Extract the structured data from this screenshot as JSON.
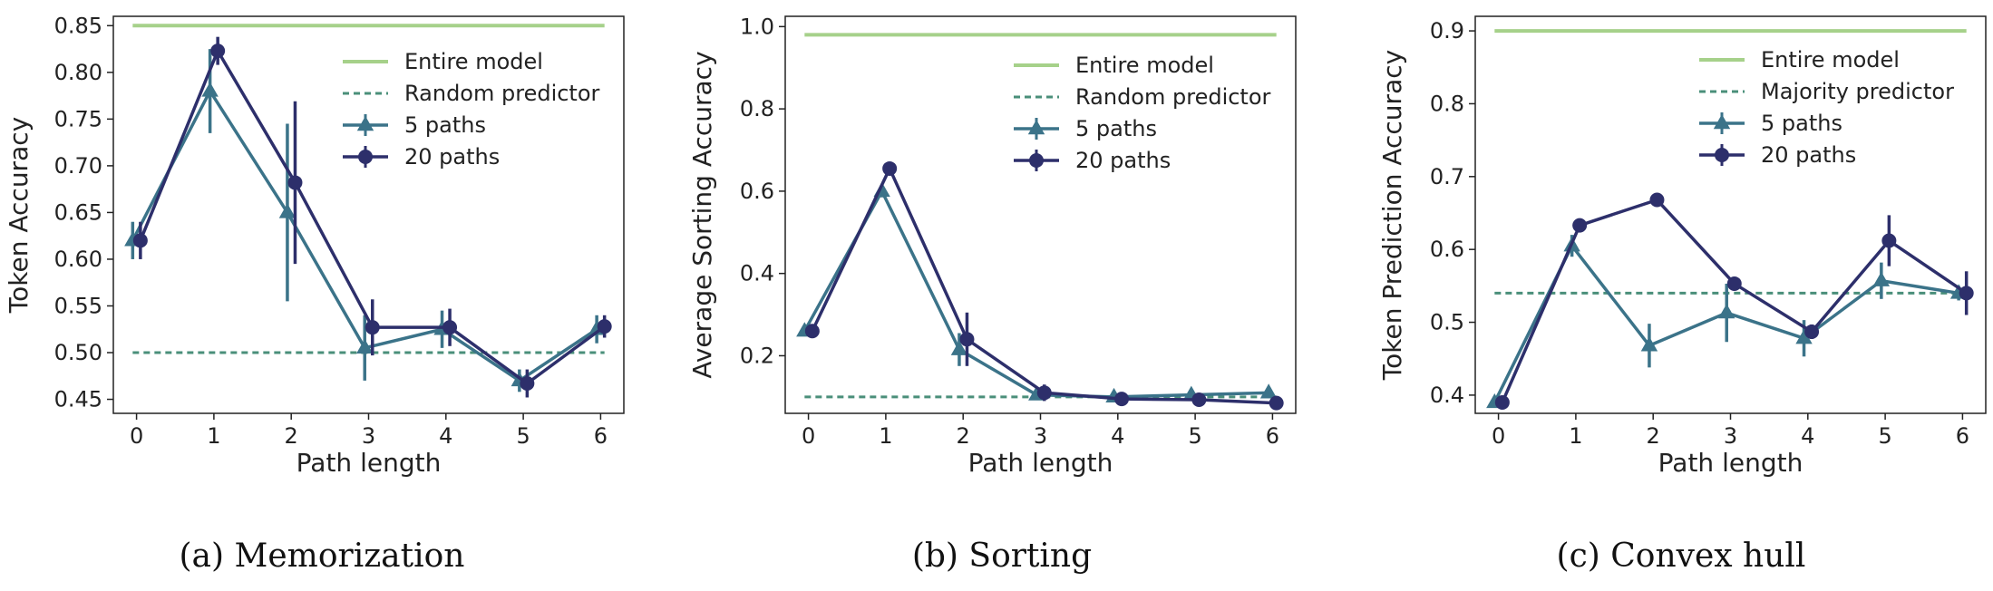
{
  "styles": {
    "entire_model": "#a6d18a",
    "baseline": "#4a8f7a",
    "five_paths": "#3b7389",
    "twenty_paths": "#2d2f6b"
  },
  "chart_data": [
    {
      "type": "line",
      "caption": "(a) Memorization",
      "xlabel": "Path length",
      "ylabel": "Token Accuracy",
      "x": [
        0,
        1,
        2,
        3,
        4,
        5,
        6
      ],
      "xlim": [
        -0.3,
        6.3
      ],
      "ylim": [
        0.435,
        0.86
      ],
      "yticks": [
        0.45,
        0.5,
        0.55,
        0.6,
        0.65,
        0.7,
        0.75,
        0.8,
        0.85
      ],
      "ytick_labels": [
        "0.45",
        "0.50",
        "0.55",
        "0.60",
        "0.65",
        "0.70",
        "0.75",
        "0.80",
        "0.85"
      ],
      "legend_position": "upper-right",
      "grid": false,
      "series": [
        {
          "name": "Entire model",
          "kind": "constant",
          "value": 0.85,
          "style": "solid",
          "color_key": "entire_model"
        },
        {
          "name": "Random predictor",
          "kind": "constant",
          "value": 0.5,
          "style": "dashed",
          "color_key": "baseline"
        },
        {
          "name": "5 paths",
          "kind": "errorline",
          "marker": "triangle",
          "color_key": "five_paths",
          "values": [
            0.62,
            0.78,
            0.65,
            0.505,
            0.525,
            0.47,
            0.525
          ],
          "errors": [
            0.02,
            0.045,
            0.095,
            0.035,
            0.02,
            0.012,
            0.015
          ]
        },
        {
          "name": "20 paths",
          "kind": "errorline",
          "marker": "circle",
          "color_key": "twenty_paths",
          "values": [
            0.62,
            0.823,
            0.682,
            0.527,
            0.527,
            0.467,
            0.528
          ],
          "errors": [
            0.02,
            0.015,
            0.087,
            0.03,
            0.02,
            0.015,
            0.012
          ]
        }
      ]
    },
    {
      "type": "line",
      "caption": "(b) Sorting",
      "xlabel": "Path length",
      "ylabel": "Average Sorting Accuracy",
      "x": [
        0,
        1,
        2,
        3,
        4,
        5,
        6
      ],
      "xlim": [
        -0.3,
        6.3
      ],
      "ylim": [
        0.06,
        1.025
      ],
      "yticks": [
        0.2,
        0.4,
        0.6,
        0.8,
        1.0
      ],
      "ytick_labels": [
        "0.2",
        "0.4",
        "0.6",
        "0.8",
        "1.0"
      ],
      "legend_position": "upper-right",
      "grid": false,
      "series": [
        {
          "name": "Entire model",
          "kind": "constant",
          "value": 0.98,
          "style": "solid",
          "color_key": "entire_model"
        },
        {
          "name": "Random predictor",
          "kind": "constant",
          "value": 0.1,
          "style": "dashed",
          "color_key": "baseline"
        },
        {
          "name": "5 paths",
          "kind": "errorline",
          "marker": "triangle",
          "color_key": "five_paths",
          "values": [
            0.26,
            0.6,
            0.215,
            0.105,
            0.1,
            0.105,
            0.11
          ],
          "errors": [
            0.01,
            0.015,
            0.04,
            0.012,
            0.008,
            0.01,
            0.01
          ]
        },
        {
          "name": "20 paths",
          "kind": "errorline",
          "marker": "circle",
          "color_key": "twenty_paths",
          "values": [
            0.26,
            0.655,
            0.24,
            0.11,
            0.095,
            0.093,
            0.085
          ],
          "errors": [
            0.01,
            0.01,
            0.065,
            0.02,
            0.008,
            0.008,
            0.008
          ]
        }
      ]
    },
    {
      "type": "line",
      "caption": "(c) Convex hull",
      "xlabel": "Path length",
      "ylabel": "Token Prediction Accuracy",
      "x": [
        0,
        1,
        2,
        3,
        4,
        5,
        6
      ],
      "xlim": [
        -0.3,
        6.3
      ],
      "ylim": [
        0.375,
        0.92
      ],
      "yticks": [
        0.4,
        0.5,
        0.6,
        0.7,
        0.8,
        0.9
      ],
      "ytick_labels": [
        "0.4",
        "0.5",
        "0.6",
        "0.7",
        "0.8",
        "0.9"
      ],
      "legend_position": "upper-right",
      "grid": false,
      "series": [
        {
          "name": "Entire model",
          "kind": "constant",
          "value": 0.9,
          "style": "solid",
          "color_key": "entire_model"
        },
        {
          "name": "Majority predictor",
          "kind": "constant",
          "value": 0.54,
          "style": "dashed",
          "color_key": "baseline"
        },
        {
          "name": "5 paths",
          "kind": "errorline",
          "marker": "triangle",
          "color_key": "five_paths",
          "values": [
            0.39,
            0.605,
            0.468,
            0.513,
            0.478,
            0.557,
            0.54
          ],
          "errors": [
            0.005,
            0.015,
            0.03,
            0.04,
            0.025,
            0.025,
            0.01
          ]
        },
        {
          "name": "20 paths",
          "kind": "errorline",
          "marker": "circle",
          "color_key": "twenty_paths",
          "values": [
            0.39,
            0.633,
            0.668,
            0.553,
            0.487,
            0.612,
            0.54
          ],
          "errors": [
            0.005,
            0.008,
            0.005,
            0.008,
            0.01,
            0.035,
            0.03
          ]
        }
      ]
    }
  ]
}
